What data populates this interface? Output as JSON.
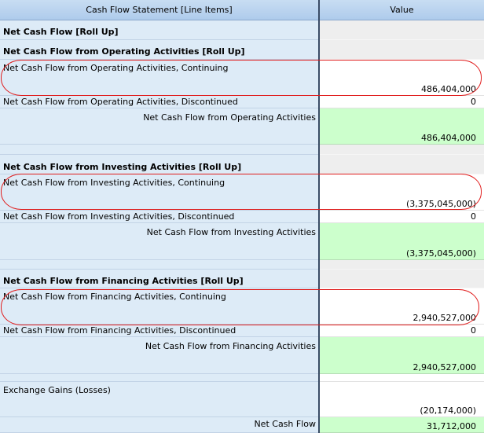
{
  "header": {
    "left": "Cash Flow Statement [Line Items]",
    "right": "Value"
  },
  "rows": [
    {
      "label": "Net Cash Flow [Roll Up]",
      "value": ""
    },
    {
      "label": "Net Cash Flow from Operating Activities [Roll Up]",
      "value": ""
    },
    {
      "label": "Net Cash Flow from Operating Activities, Continuing",
      "value": "486,404,000"
    },
    {
      "label": "Net Cash Flow from Operating Activities, Discontinued",
      "value": "0"
    },
    {
      "label": "Net Cash Flow from Operating Activities",
      "value": "486,404,000"
    },
    {
      "label": "Net Cash Flow from Investing Activities [Roll Up]",
      "value": ""
    },
    {
      "label": "Net Cash Flow from Investing Activities, Continuing",
      "value": "(3,375,045,000)"
    },
    {
      "label": "Net Cash Flow from Investing Activities, Discontinued",
      "value": "0"
    },
    {
      "label": "Net Cash Flow from Investing Activities",
      "value": "(3,375,045,000)"
    },
    {
      "label": "Net Cash Flow from Financing Activities [Roll Up]",
      "value": ""
    },
    {
      "label": "Net Cash Flow from Financing Activities, Continuing",
      "value": "2,940,527,000"
    },
    {
      "label": "Net Cash Flow from Financing Activities, Discontinued",
      "value": "0"
    },
    {
      "label": "Net Cash Flow from Financing Activities",
      "value": "2,940,527,000"
    },
    {
      "label": "Exchange Gains (Losses)",
      "value": "(20,174,000)"
    },
    {
      "label": "Net Cash Flow",
      "value": "31,712,000"
    }
  ]
}
